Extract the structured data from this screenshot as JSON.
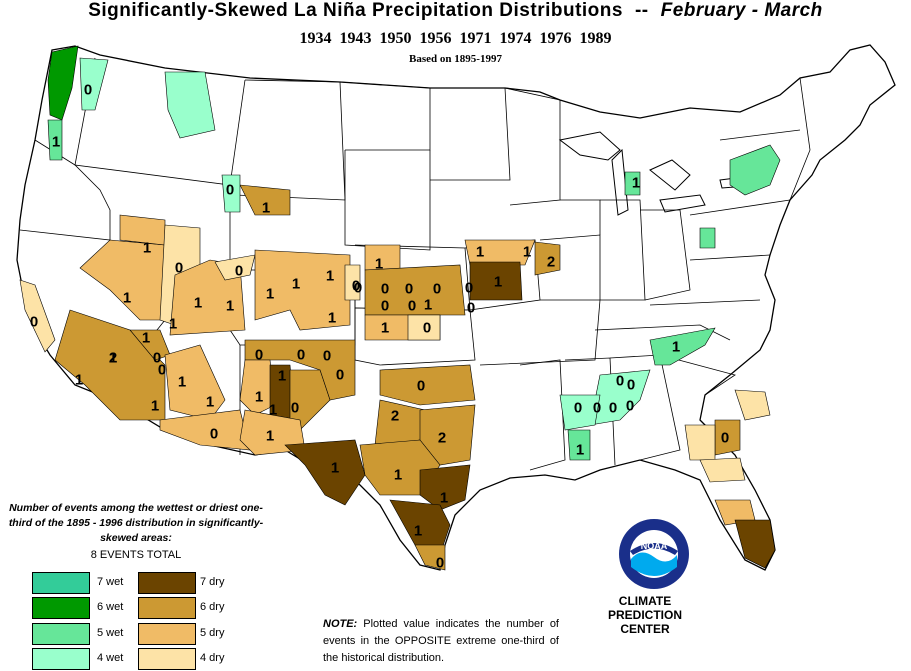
{
  "title": {
    "main": "Significantly-Skewed La Niña Precipitation Distributions",
    "separator": "--",
    "months": "February - March"
  },
  "years": "1934 1943 1950 1956 1971 1974 1976 1989",
  "based_on": "Based on 1895-1997",
  "legend": {
    "title": "Number of events among the wettest or driest one-third of the 1895 - 1996 distribution in significantly-skewed areas:",
    "total": "8 EVENTS TOTAL",
    "wet": [
      {
        "label": "7 wet",
        "color": "#33cc99"
      },
      {
        "label": "6 wet",
        "color": "#009900"
      },
      {
        "label": "5 wet",
        "color": "#66e699"
      },
      {
        "label": "4 wet",
        "color": "#99ffcc"
      }
    ],
    "dry": [
      {
        "label": "7 dry",
        "color": "#6b4400"
      },
      {
        "label": "6 dry",
        "color": "#cc9933"
      },
      {
        "label": "5 dry",
        "color": "#f0bb66"
      },
      {
        "label": "4 dry",
        "color": "#fde3a7"
      }
    ]
  },
  "note": {
    "prefix": "NOTE:",
    "text": "Plotted value indicates the number of events in the OPPOSITE extreme one-third of the historical distribution."
  },
  "logo": {
    "text": "NOAA"
  },
  "credit": {
    "line1": "CLIMATE PREDICTION",
    "line2": "CENTER"
  },
  "division_values": [
    "0",
    "1",
    "1",
    "1",
    "0",
    "0",
    "1",
    "0",
    "1",
    "1",
    "0",
    "1",
    "1",
    "1",
    "1",
    "1",
    "0",
    "1",
    "1",
    "1",
    "0",
    "0",
    "1",
    "1",
    "0",
    "1",
    "0",
    "0",
    "1",
    "1",
    "1",
    "0",
    "1",
    "0",
    "0",
    "1",
    "0",
    "1",
    "2",
    "0",
    "1",
    "1",
    "1",
    "0",
    "2",
    "1",
    "0",
    "0",
    "0",
    "1",
    "0",
    "0",
    "0",
    "0",
    "2",
    "2",
    "1",
    "1",
    "1",
    "0",
    "0",
    "0",
    "0",
    "0",
    "0",
    "1",
    "0",
    "1",
    "1",
    "0"
  ]
}
